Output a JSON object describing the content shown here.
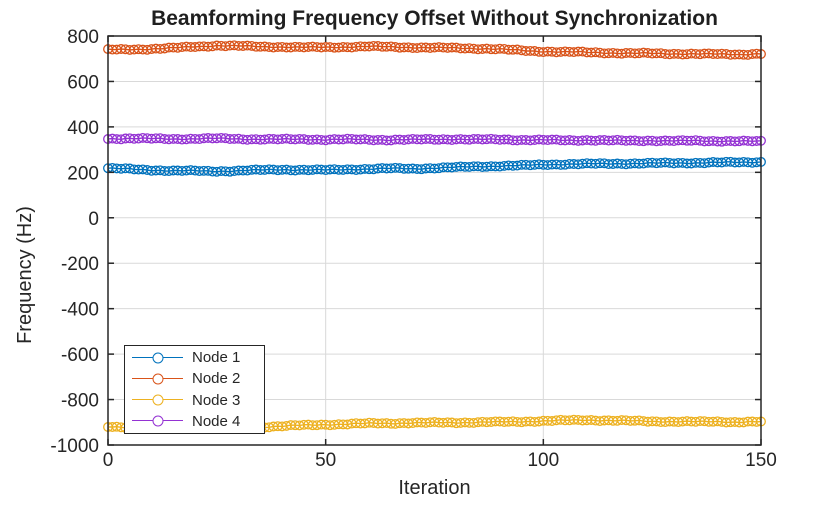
{
  "chart_data": {
    "type": "line",
    "title": "Beamforming Frequency Offset Without Synchronization",
    "xlabel": "Iteration",
    "ylabel": "Frequency (Hz)",
    "xlim": [
      0,
      150
    ],
    "ylim": [
      -1000,
      800
    ],
    "x_ticks": [
      0,
      50,
      100,
      150
    ],
    "y_ticks": [
      -1000,
      -800,
      -600,
      -400,
      -200,
      0,
      200,
      400,
      600,
      800
    ],
    "grid": true,
    "marker": "o",
    "legend_position": "southwest-inside",
    "anchor_step": 5,
    "noise_hz": 3.5,
    "series": [
      {
        "name": "Node 1",
        "color": "#0072BD",
        "anchors": [
          218,
          214,
          210,
          207,
          206,
          205,
          207,
          210,
          212,
          211,
          210,
          213,
          215,
          217,
          216,
          219,
          222,
          226,
          228,
          230,
          234,
          236,
          237,
          238,
          239,
          240,
          241,
          242,
          243,
          244,
          246
        ]
      },
      {
        "name": "Node 2",
        "color": "#D95319",
        "anchors": [
          739,
          741,
          743,
          747,
          753,
          758,
          756,
          753,
          752,
          750,
          750,
          752,
          754,
          752,
          750,
          748,
          747,
          745,
          742,
          736,
          732,
          730,
          728,
          726,
          724,
          723,
          722,
          721,
          720,
          719,
          722
        ]
      },
      {
        "name": "Node 3",
        "color": "#EDB120",
        "anchors": [
          -920,
          -922,
          -923,
          -924,
          -922,
          -921,
          -922,
          -921,
          -917,
          -913,
          -910,
          -908,
          -905,
          -904,
          -903,
          -902,
          -901,
          -900,
          -899,
          -897,
          -894,
          -892,
          -890,
          -892,
          -894,
          -896,
          -897,
          -898,
          -897,
          -899,
          -898
        ]
      },
      {
        "name": "Node 4",
        "color": "#9432D3",
        "anchors": [
          348,
          349,
          348,
          347,
          348,
          349,
          347,
          346,
          345,
          346,
          344,
          345,
          344,
          343,
          344,
          345,
          346,
          344,
          345,
          343,
          342,
          341,
          342,
          340,
          339,
          340,
          338,
          339,
          338,
          337,
          336
        ]
      }
    ]
  },
  "colors": {
    "axis": "#262626",
    "grid": "#d9d9d9",
    "background": "#ffffff"
  }
}
